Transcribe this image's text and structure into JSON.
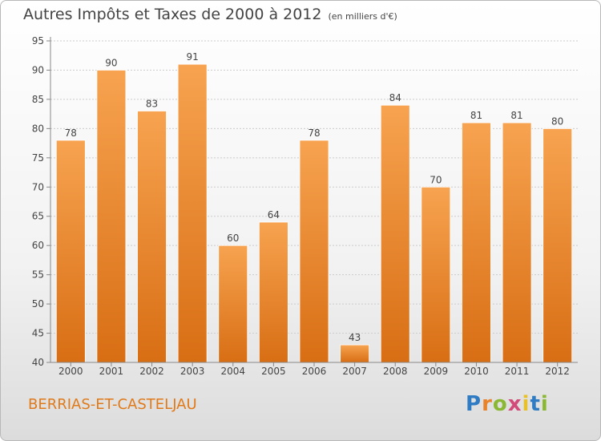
{
  "header": {
    "title": "Autres Impôts et Taxes de 2000 à 2012",
    "unit": "(en milliers d'€)"
  },
  "footer": {
    "commune": "BERRIAS-ET-CASTELJAU",
    "brand": "Proxiti"
  },
  "colors": {
    "bar_top": "#f7a350",
    "bar_bottom": "#d86e14",
    "grid": "#cccccc",
    "label": "#444444"
  },
  "chart_data": {
    "type": "bar",
    "title": "Autres Impôts et Taxes de 2000 à 2012",
    "subtitle": "(en milliers d'€)",
    "categories": [
      "2000",
      "2001",
      "2002",
      "2003",
      "2004",
      "2005",
      "2006",
      "2007",
      "2008",
      "2009",
      "2010",
      "2011",
      "2012"
    ],
    "values": [
      78,
      90,
      83,
      91,
      60,
      64,
      78,
      43,
      84,
      70,
      81,
      81,
      80
    ],
    "ylim": [
      40,
      95
    ],
    "yticks": [
      40,
      45,
      50,
      55,
      60,
      65,
      70,
      75,
      80,
      85,
      90,
      95
    ],
    "grid": true,
    "data_labels": true
  }
}
